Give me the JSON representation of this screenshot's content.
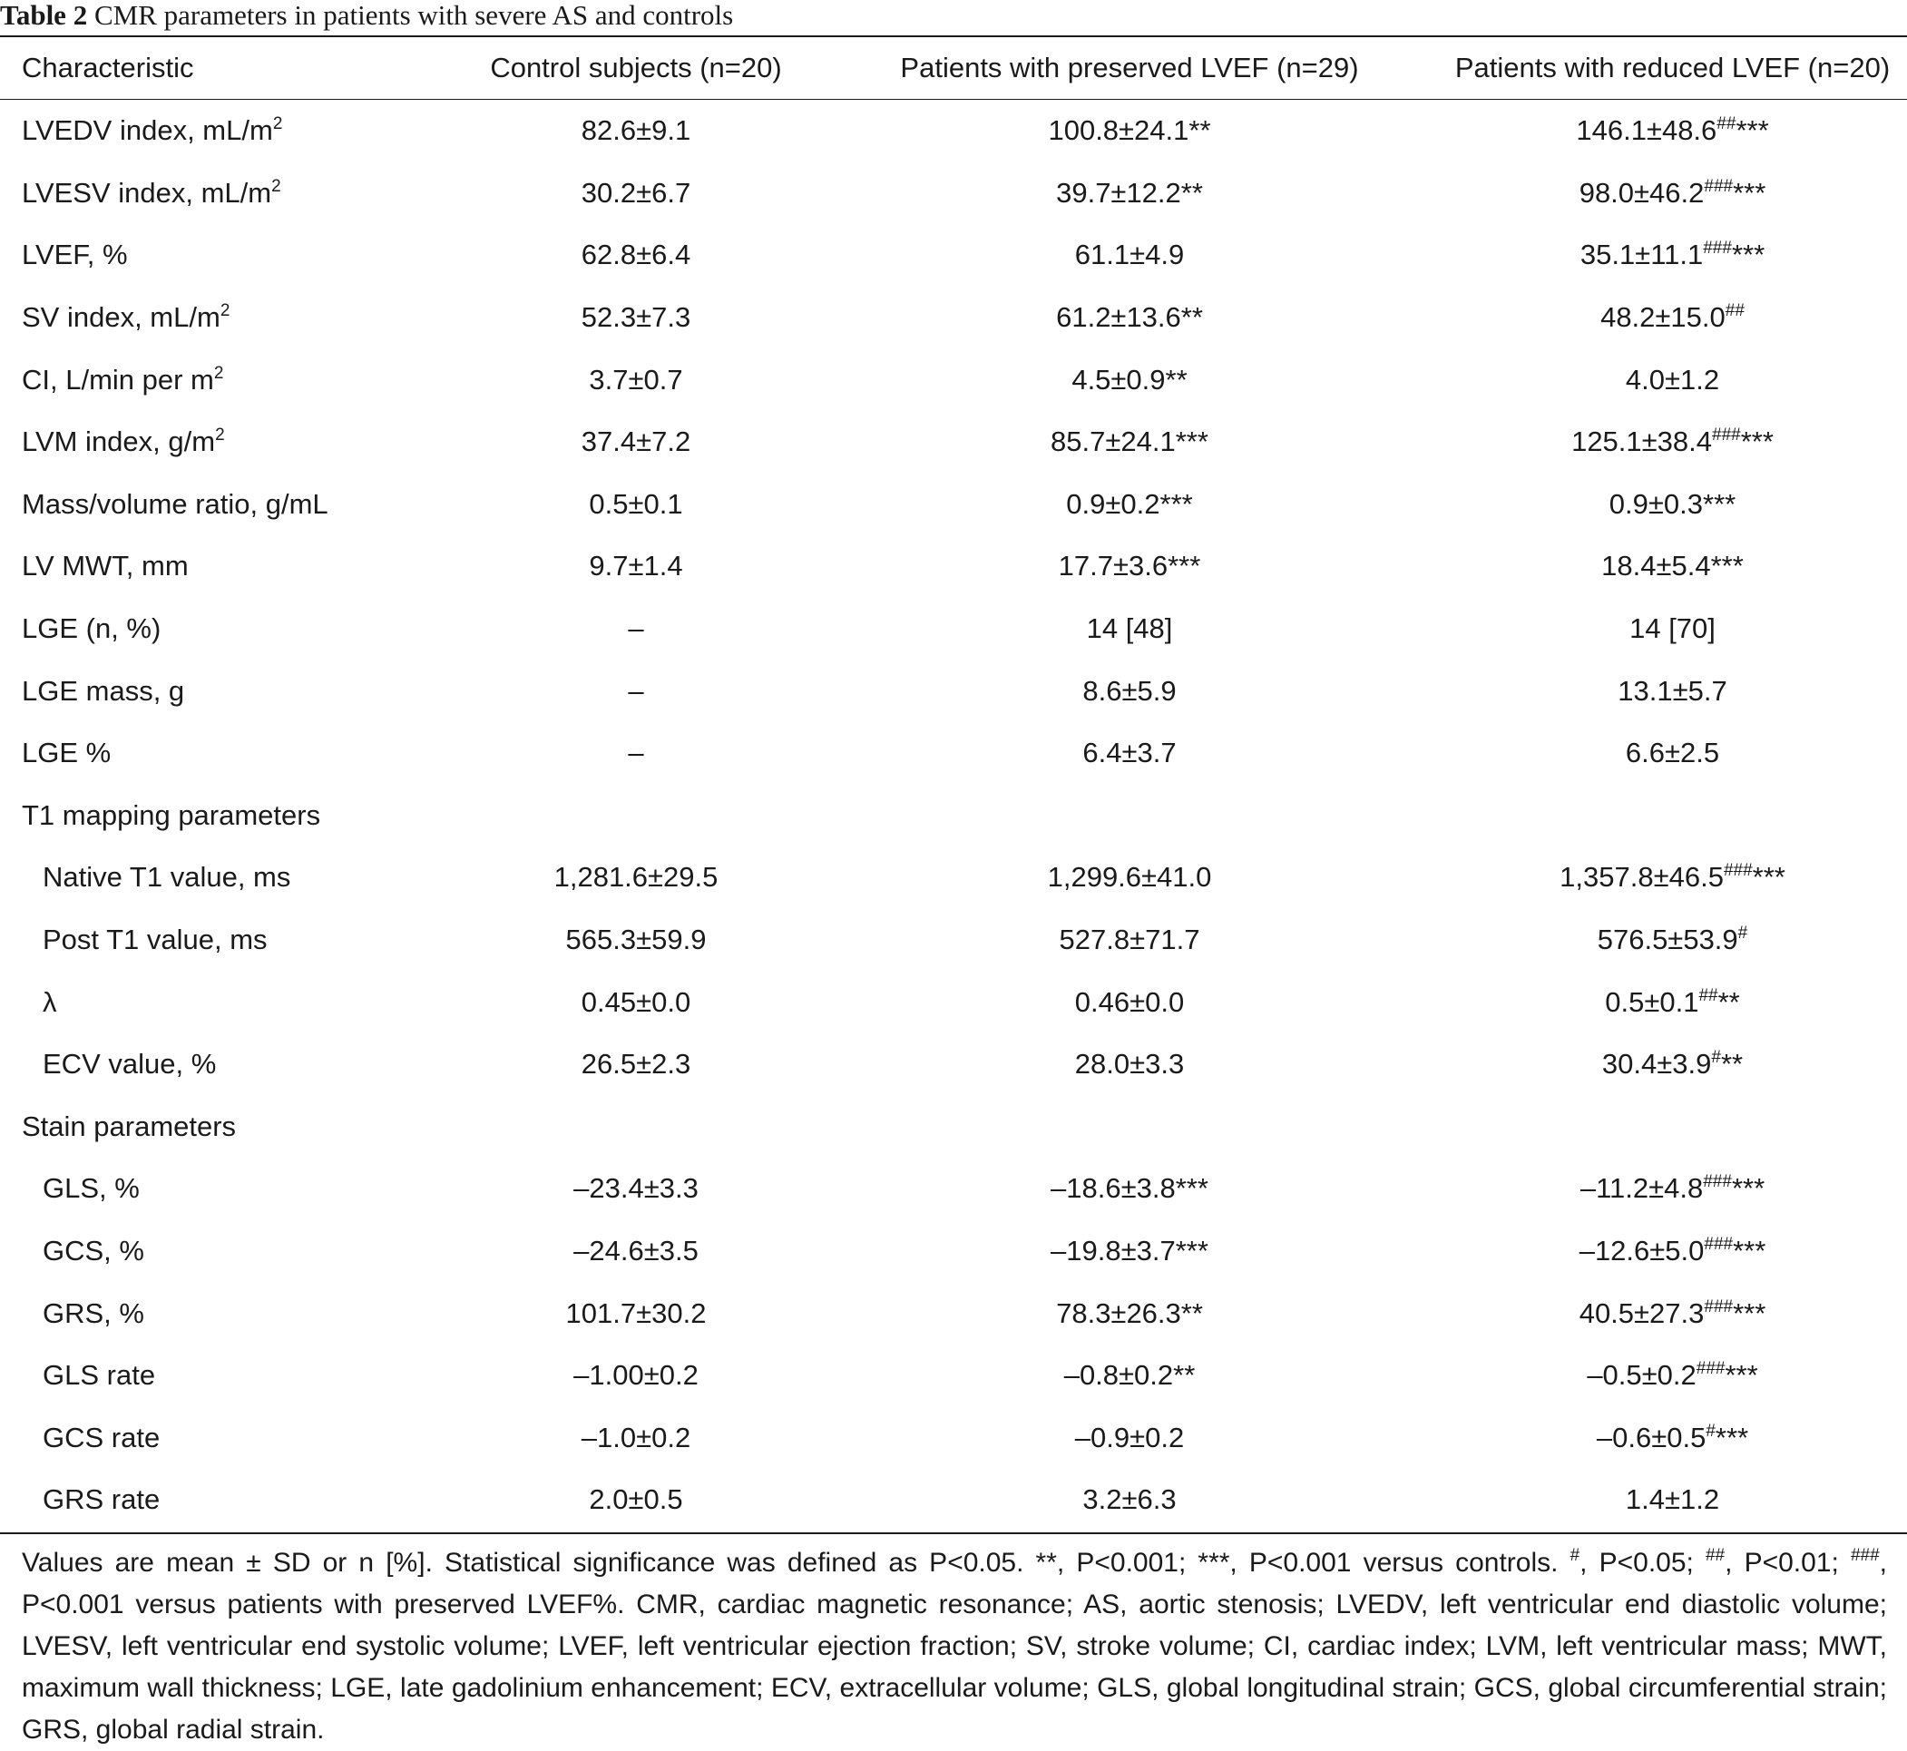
{
  "caption": {
    "label": "Table 2",
    "text": "CMR parameters in patients with severe AS and controls"
  },
  "table": {
    "headers": [
      "Characteristic",
      "Control subjects (n=20)",
      "Patients with preserved LVEF (n=29)",
      "Patients with reduced LVEF (n=20)"
    ],
    "rows": [
      {
        "label": "LVEDV index, mL/m",
        "label_sup": "2",
        "indent": false,
        "section": false,
        "c1": "82.6±9.1",
        "c1_sup": "",
        "c2": "100.8±24.1**",
        "c2_sup": "",
        "c3": "146.1±48.6",
        "c3_sup": "##",
        "c3_suffix": "***"
      },
      {
        "label": "LVESV index, mL/m",
        "label_sup": "2",
        "indent": false,
        "section": false,
        "c1": "30.2±6.7",
        "c1_sup": "",
        "c2": "39.7±12.2**",
        "c2_sup": "",
        "c3": "98.0±46.2",
        "c3_sup": "###",
        "c3_suffix": "***"
      },
      {
        "label": "LVEF, %",
        "label_sup": "",
        "indent": false,
        "section": false,
        "c1": "62.8±6.4",
        "c1_sup": "",
        "c2": "61.1±4.9",
        "c2_sup": "",
        "c3": "35.1±11.1",
        "c3_sup": "###",
        "c3_suffix": "***"
      },
      {
        "label": "SV index, mL/m",
        "label_sup": "2",
        "indent": false,
        "section": false,
        "c1": "52.3±7.3",
        "c1_sup": "",
        "c2": "61.2±13.6**",
        "c2_sup": "",
        "c3": "48.2±15.0",
        "c3_sup": "##",
        "c3_suffix": ""
      },
      {
        "label": "CI, L/min per m",
        "label_sup": "2",
        "indent": false,
        "section": false,
        "c1": "3.7±0.7",
        "c1_sup": "",
        "c2": "4.5±0.9**",
        "c2_sup": "",
        "c3": "4.0±1.2",
        "c3_sup": "",
        "c3_suffix": ""
      },
      {
        "label": "LVM index, g/m",
        "label_sup": "2",
        "indent": false,
        "section": false,
        "c1": "37.4±7.2",
        "c1_sup": "",
        "c2": "85.7±24.1***",
        "c2_sup": "",
        "c3": "125.1±38.4",
        "c3_sup": "###",
        "c3_suffix": "***"
      },
      {
        "label": "Mass/volume ratio, g/mL",
        "label_sup": "",
        "indent": false,
        "section": false,
        "c1": "0.5±0.1",
        "c1_sup": "",
        "c2": "0.9±0.2***",
        "c2_sup": "",
        "c3": "0.9±0.3***",
        "c3_sup": "",
        "c3_suffix": ""
      },
      {
        "label": "LV MWT, mm",
        "label_sup": "",
        "indent": false,
        "section": false,
        "c1": "9.7±1.4",
        "c1_sup": "",
        "c2": "17.7±3.6***",
        "c2_sup": "",
        "c3": "18.4±5.4***",
        "c3_sup": "",
        "c3_suffix": ""
      },
      {
        "label": "LGE (n, %)",
        "label_sup": "",
        "indent": false,
        "section": false,
        "c1": "–",
        "c1_sup": "",
        "c2": "14 [48]",
        "c2_sup": "",
        "c3": "14 [70]",
        "c3_sup": "",
        "c3_suffix": ""
      },
      {
        "label": "LGE mass, g",
        "label_sup": "",
        "indent": false,
        "section": false,
        "c1": "–",
        "c1_sup": "",
        "c2": "8.6±5.9",
        "c2_sup": "",
        "c3": "13.1±5.7",
        "c3_sup": "",
        "c3_suffix": ""
      },
      {
        "label": "LGE %",
        "label_sup": "",
        "indent": false,
        "section": false,
        "c1": "–",
        "c1_sup": "",
        "c2": "6.4±3.7",
        "c2_sup": "",
        "c3": "6.6±2.5",
        "c3_sup": "",
        "c3_suffix": ""
      },
      {
        "label": "T1 mapping parameters",
        "label_sup": "",
        "indent": false,
        "section": true,
        "c1": "",
        "c1_sup": "",
        "c2": "",
        "c2_sup": "",
        "c3": "",
        "c3_sup": "",
        "c3_suffix": ""
      },
      {
        "label": "Native T1 value, ms",
        "label_sup": "",
        "indent": true,
        "section": false,
        "c1": "1,281.6±29.5",
        "c1_sup": "",
        "c2": "1,299.6±41.0",
        "c2_sup": "",
        "c3": "1,357.8±46.5",
        "c3_sup": "###",
        "c3_suffix": "***"
      },
      {
        "label": "Post T1 value, ms",
        "label_sup": "",
        "indent": true,
        "section": false,
        "c1": "565.3±59.9",
        "c1_sup": "",
        "c2": "527.8±71.7",
        "c2_sup": "",
        "c3": "576.5±53.9",
        "c3_sup": "#",
        "c3_suffix": ""
      },
      {
        "label": "λ",
        "label_sup": "",
        "indent": true,
        "section": false,
        "c1": "0.45±0.0",
        "c1_sup": "",
        "c2": "0.46±0.0",
        "c2_sup": "",
        "c3": "0.5±0.1",
        "c3_sup": "##",
        "c3_suffix": "**"
      },
      {
        "label": "ECV value, %",
        "label_sup": "",
        "indent": true,
        "section": false,
        "c1": "26.5±2.3",
        "c1_sup": "",
        "c2": "28.0±3.3",
        "c2_sup": "",
        "c3": "30.4±3.9",
        "c3_sup": "#",
        "c3_suffix": "**"
      },
      {
        "label": "Stain parameters",
        "label_sup": "",
        "indent": false,
        "section": true,
        "c1": "",
        "c1_sup": "",
        "c2": "",
        "c2_sup": "",
        "c3": "",
        "c3_sup": "",
        "c3_suffix": ""
      },
      {
        "label": "GLS, %",
        "label_sup": "",
        "indent": true,
        "section": false,
        "c1": "–23.4±3.3",
        "c1_sup": "",
        "c2": "–18.6±3.8***",
        "c2_sup": "",
        "c3": "–11.2±4.8",
        "c3_sup": "###",
        "c3_suffix": "***"
      },
      {
        "label": "GCS, %",
        "label_sup": "",
        "indent": true,
        "section": false,
        "c1": "–24.6±3.5",
        "c1_sup": "",
        "c2": "–19.8±3.7***",
        "c2_sup": "",
        "c3": "–12.6±5.0",
        "c3_sup": "###",
        "c3_suffix": "***"
      },
      {
        "label": "GRS, %",
        "label_sup": "",
        "indent": true,
        "section": false,
        "c1": "101.7±30.2",
        "c1_sup": "",
        "c2": "78.3±26.3**",
        "c2_sup": "",
        "c3": "40.5±27.3",
        "c3_sup": "###",
        "c3_suffix": "***"
      },
      {
        "label": "GLS rate",
        "label_sup": "",
        "indent": true,
        "section": false,
        "c1": "–1.00±0.2",
        "c1_sup": "",
        "c2": "–0.8±0.2**",
        "c2_sup": "",
        "c3": "–0.5±0.2",
        "c3_sup": "###",
        "c3_suffix": "***"
      },
      {
        "label": "GCS rate",
        "label_sup": "",
        "indent": true,
        "section": false,
        "c1": "–1.0±0.2",
        "c1_sup": "",
        "c2": "–0.9±0.2",
        "c2_sup": "",
        "c3": "–0.6±0.5",
        "c3_sup": "#",
        "c3_suffix": "***"
      },
      {
        "label": "GRS rate",
        "label_sup": "",
        "indent": true,
        "section": false,
        "c1": "2.0±0.5",
        "c1_sup": "",
        "c2": "3.2±6.3",
        "c2_sup": "",
        "c3": "1.4±1.2",
        "c3_sup": "",
        "c3_suffix": ""
      }
    ]
  },
  "footnote": {
    "segments": [
      {
        "text": "Values are mean ± SD or n [%]. Statistical significance was defined as P<0.05. **, P<0.001; ***, P<0.001 versus controls. ",
        "sup": false
      },
      {
        "text": "#",
        "sup": true
      },
      {
        "text": ", P<0.05; ",
        "sup": false
      },
      {
        "text": "##",
        "sup": true
      },
      {
        "text": ", P<0.01; ",
        "sup": false
      },
      {
        "text": "###",
        "sup": true
      },
      {
        "text": ", P<0.001 versus patients with preserved LVEF%. CMR, cardiac magnetic resonance; AS, aortic stenosis; LVEDV, left ventricular end diastolic volume; LVESV, left ventricular end systolic volume; LVEF, left ventricular ejection fraction; SV, stroke volume; CI, cardiac index; LVM, left ventricular mass; MWT, maximum wall thickness; LGE, late gadolinium enhancement; ECV, extracellular volume; GLS, global longitudinal strain; GCS, global circumferential strain; GRS, global radial strain.",
        "sup": false
      }
    ]
  }
}
